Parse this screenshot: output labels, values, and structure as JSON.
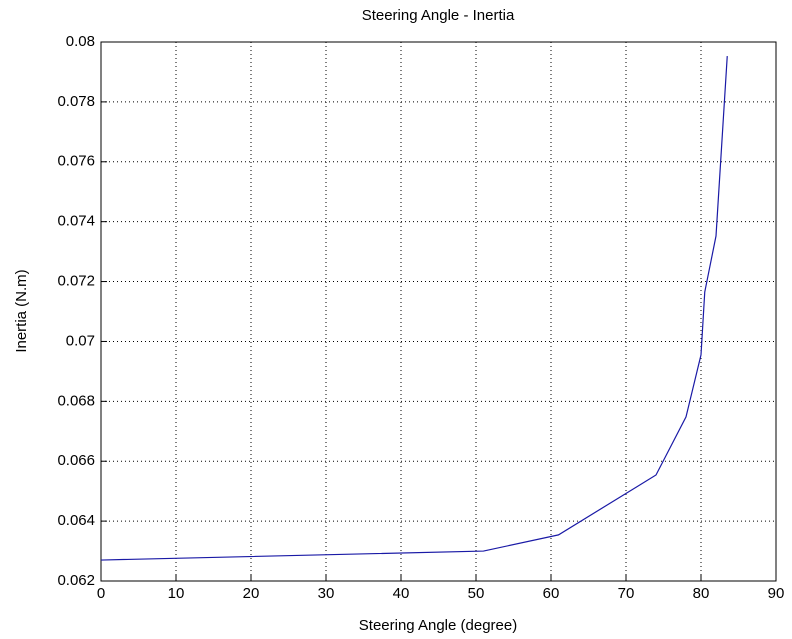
{
  "chart_data": {
    "type": "line",
    "title": "Steering Angle - Inertia",
    "x_label": "Steering Angle (degree)",
    "y_label": "Inertia (N.m)",
    "x": [
      0,
      51,
      61,
      74,
      78,
      80,
      80.5,
      82,
      83.5
    ],
    "series": [
      {
        "color": "#1a1aa6",
        "values": [
          0.0627,
          0.063,
          0.06354,
          0.06554,
          0.06748,
          0.06955,
          0.07165,
          0.07352,
          0.07953
        ]
      }
    ],
    "xlim": [
      0,
      90
    ],
    "xticks": [
      0,
      10,
      20,
      30,
      40,
      50,
      60,
      70,
      80,
      90
    ],
    "ylim": [
      0.062,
      0.08
    ],
    "yticks": [
      0.062,
      0.064,
      0.066,
      0.068,
      0.07,
      0.072,
      0.074,
      0.076,
      0.078,
      0.08
    ],
    "grid": true
  }
}
